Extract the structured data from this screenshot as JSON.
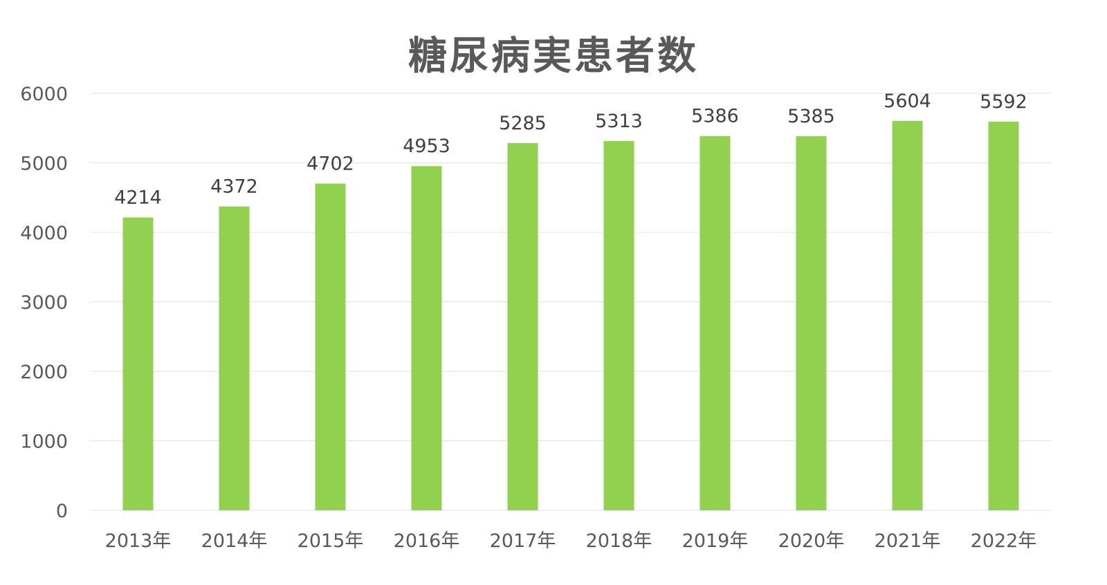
{
  "chart_data": {
    "type": "bar",
    "title": "糖尿病実患者数",
    "categories": [
      "2013年",
      "2014年",
      "2015年",
      "2016年",
      "2017年",
      "2018年",
      "2019年",
      "2020年",
      "2021年",
      "2022年"
    ],
    "values": [
      4214,
      4372,
      4702,
      4953,
      5285,
      5313,
      5386,
      5385,
      5604,
      5592
    ],
    "ylim": [
      0,
      6000
    ],
    "yticks": [
      0,
      1000,
      2000,
      3000,
      4000,
      5000,
      6000
    ],
    "grid": true,
    "data_labels": true,
    "colors": {
      "bar": "#92d050",
      "grid": "#e0e0e0",
      "text": "#595959"
    }
  }
}
